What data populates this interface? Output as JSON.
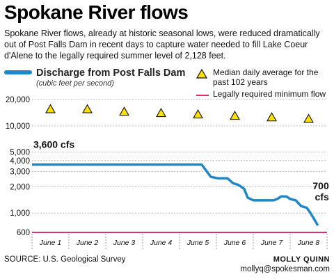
{
  "title": "Spokane River flows",
  "subtitle": "Spokane River flows, already at historic seasonal lows, were reduced dramatically out of Post Falls Dam in recent days to capture water needed to fill Lake Coeur d'Alene to the legally required summer level of 2,128 feet.",
  "legend": {
    "discharge": "Discharge from Post Falls Dam",
    "units": "(cubic feet per second)",
    "median": "Median daily average for the past 102 years",
    "minimum": "Legally required minimum flow"
  },
  "footer": {
    "source": "SOURCE: U.S. Geological Survey",
    "credit_name": "MOLLY QUINN",
    "credit_email": "mollyq@spokesman.com"
  },
  "colors": {
    "discharge": "#1f86c7",
    "median_fill": "#ffe100",
    "minimum": "#d6336c",
    "grid": "#bbbbbb"
  },
  "chart_data": {
    "type": "line",
    "y_scale": "log",
    "ylim": [
      600,
      22000
    ],
    "y_ticks": [
      {
        "value": 600,
        "label": "600"
      },
      {
        "value": 1000,
        "label": "1,000"
      },
      {
        "value": 2000,
        "label": "2,000"
      },
      {
        "value": 3000,
        "label": "3,000"
      },
      {
        "value": 4000,
        "label": "4,000"
      },
      {
        "value": 5000,
        "label": "5,000"
      },
      {
        "value": 10000,
        "label": "10,000"
      },
      {
        "value": 20000,
        "label": "20,000"
      }
    ],
    "xlim": [
      1,
      9
    ],
    "x_ticks": [
      {
        "value": 1.5,
        "label": "June 1"
      },
      {
        "value": 2.5,
        "label": "June 2"
      },
      {
        "value": 3.5,
        "label": "June 3"
      },
      {
        "value": 4.5,
        "label": "June 4"
      },
      {
        "value": 5.5,
        "label": "June 5"
      },
      {
        "value": 6.5,
        "label": "June 6"
      },
      {
        "value": 7.5,
        "label": "June 7"
      },
      {
        "value": 8.5,
        "label": "June 8"
      }
    ],
    "series": [
      {
        "name": "Discharge from Post Falls Dam",
        "x": [
          1.0,
          2.0,
          3.0,
          4.0,
          5.0,
          5.6,
          5.85,
          6.05,
          6.3,
          6.45,
          6.6,
          6.75,
          6.85,
          7.0,
          7.15,
          7.35,
          7.55,
          7.65,
          7.75,
          7.9,
          8.0,
          8.15,
          8.3,
          8.45,
          8.55,
          8.65,
          8.75
        ],
        "values": [
          3600,
          3600,
          3600,
          3600,
          3600,
          3600,
          2600,
          2500,
          2500,
          2200,
          2100,
          1900,
          1500,
          1400,
          1400,
          1400,
          1400,
          1450,
          1550,
          1550,
          1450,
          1400,
          1200,
          1150,
          1000,
          850,
          720
        ]
      },
      {
        "name": "Median daily average for the past 102 years",
        "x": [
          1.5,
          2.5,
          3.5,
          4.5,
          5.5,
          6.5,
          7.5,
          8.5
        ],
        "values": [
          15500,
          15500,
          14500,
          14000,
          13500,
          13000,
          12500,
          12000
        ]
      }
    ],
    "reference_lines": [
      {
        "name": "Legally required minimum flow",
        "value": 600
      }
    ],
    "annotations": [
      {
        "text": "3,600 cfs",
        "x": 1,
        "y": 3600
      },
      {
        "text": "700",
        "x": 8.75,
        "y": 720
      },
      {
        "text": "cfs",
        "x": 8.75,
        "y": 720
      }
    ]
  }
}
